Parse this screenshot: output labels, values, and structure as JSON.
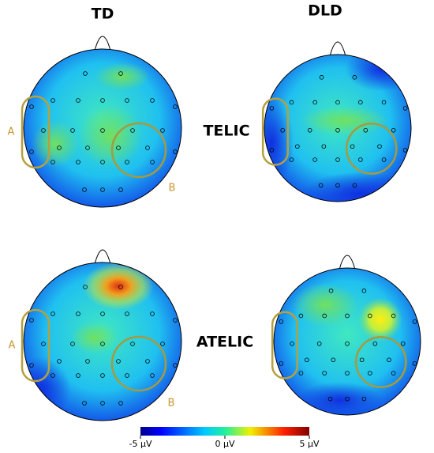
{
  "columns": [
    "TD",
    "DLD"
  ],
  "rows": [
    {
      "label": "TELIC",
      "region_a": "A",
      "region_b": "B"
    },
    {
      "label": "ATELIC",
      "region_a": "A",
      "region_b": "B"
    }
  ],
  "colorbar": {
    "lim": [
      -5,
      5
    ],
    "ticks": [
      {
        "value": -5,
        "label": "-5 μV"
      },
      {
        "value": 0,
        "label": "0 μV"
      },
      {
        "value": 5,
        "label": "5 μV"
      }
    ]
  }
}
